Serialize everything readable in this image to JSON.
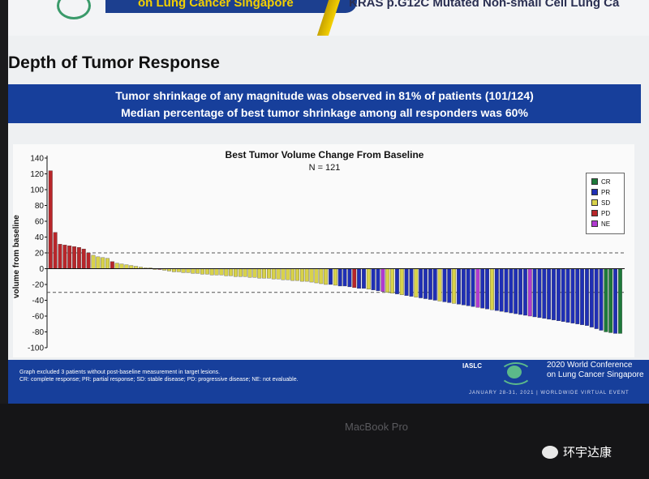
{
  "header": {
    "left_title": "on Lung Cancer Singapore",
    "right_title": "KRAS p.G12C Mutated Non-small Cell Lung Ca"
  },
  "slide": {
    "title": "Depth of Tumor Response",
    "banner_line1": "Tumor shrinkage of any magnitude was observed in 81% of patients (101/124)",
    "banner_line2": "Median percentage of best tumor shrinkage among all responders was 60%"
  },
  "chart_data": {
    "type": "bar",
    "title": "Best Tumor Volume Change From Baseline",
    "subtitle": "N = 121",
    "ylabel": "volume from baseline",
    "xlabel": "",
    "ylim": [
      -100,
      140
    ],
    "yticks": [
      -100,
      -80,
      -60,
      -40,
      -20,
      0,
      20,
      40,
      60,
      80,
      100,
      120,
      140
    ],
    "reference_lines": [
      20,
      -30
    ],
    "legend": {
      "position": "top-right",
      "entries": [
        {
          "code": "CR",
          "color": "#1e7a3a"
        },
        {
          "code": "PR",
          "color": "#1f2fb5"
        },
        {
          "code": "SD",
          "color": "#d8d24a"
        },
        {
          "code": "PD",
          "color": "#b8262a"
        },
        {
          "code": "NE",
          "color": "#b03ad0"
        }
      ]
    },
    "values": [
      124,
      46,
      31,
      30,
      29,
      28,
      27,
      25,
      20,
      17,
      15,
      14,
      13,
      9,
      7,
      6,
      5,
      4,
      3,
      2,
      1,
      1,
      0,
      -1,
      -2,
      -3,
      -4,
      -4,
      -5,
      -5,
      -6,
      -6,
      -7,
      -7,
      -8,
      -8,
      -8,
      -9,
      -9,
      -10,
      -10,
      -10,
      -11,
      -11,
      -12,
      -12,
      -12,
      -13,
      -13,
      -14,
      -14,
      -15,
      -15,
      -16,
      -16,
      -17,
      -18,
      -19,
      -20,
      -20,
      -21,
      -22,
      -22,
      -23,
      -24,
      -25,
      -25,
      -26,
      -27,
      -28,
      -29,
      -30,
      -31,
      -32,
      -33,
      -34,
      -35,
      -36,
      -37,
      -38,
      -39,
      -40,
      -41,
      -42,
      -43,
      -44,
      -45,
      -46,
      -47,
      -48,
      -49,
      -50,
      -51,
      -52,
      -53,
      -54,
      -55,
      -56,
      -57,
      -58,
      -59,
      -60,
      -61,
      -62,
      -63,
      -64,
      -65,
      -66,
      -67,
      -68,
      -69,
      -70,
      -71,
      -72,
      -74,
      -76,
      -78,
      -80,
      -81,
      -82,
      -82
    ],
    "categories_response": [
      "PD",
      "PD",
      "PD",
      "PD",
      "PD",
      "PD",
      "PD",
      "PD",
      "PD",
      "SD",
      "SD",
      "SD",
      "SD",
      "PD",
      "SD",
      "SD",
      "SD",
      "SD",
      "SD",
      "SD",
      "SD",
      "SD",
      "SD",
      "PD",
      "SD",
      "SD",
      "SD",
      "SD",
      "SD",
      "SD",
      "SD",
      "SD",
      "SD",
      "SD",
      "SD",
      "SD",
      "SD",
      "SD",
      "SD",
      "SD",
      "SD",
      "SD",
      "SD",
      "SD",
      "SD",
      "SD",
      "SD",
      "SD",
      "SD",
      "SD",
      "SD",
      "SD",
      "SD",
      "SD",
      "SD",
      "SD",
      "SD",
      "SD",
      "SD",
      "PR",
      "SD",
      "PR",
      "PR",
      "PR",
      "PD",
      "PR",
      "PR",
      "SD",
      "PR",
      "PR",
      "NE",
      "SD",
      "SD",
      "PR",
      "SD",
      "PR",
      "PR",
      "SD",
      "PR",
      "PR",
      "PR",
      "PR",
      "SD",
      "PR",
      "PR",
      "SD",
      "PR",
      "PR",
      "PR",
      "PR",
      "NE",
      "PR",
      "PR",
      "SD",
      "PR",
      "PR",
      "PR",
      "PR",
      "PR",
      "PR",
      "PR",
      "NE",
      "PR",
      "PR",
      "PR",
      "PR",
      "PR",
      "PR",
      "PR",
      "PR",
      "PR",
      "PR",
      "PR",
      "PR",
      "PR",
      "PR",
      "PR",
      "CR",
      "CR",
      "PR",
      "CR"
    ]
  },
  "footer": {
    "note1": "Graph excluded 3 patients without post-baseline measurement in target lesions.",
    "note2": "CR: complete response; PR: partial response; SD: stable disease; PD: progressive disease; NE: not evaluable.",
    "org": "IASLC",
    "conf_line1": "2020 World Conference",
    "conf_line2": "on Lung Cancer Singapore",
    "conf_date": "JANUARY 28-31, 2021 | WORLDWIDE VIRTUAL EVENT"
  },
  "device": {
    "brand": "MacBook Pro"
  },
  "watermark": {
    "text": "环宇达康"
  }
}
